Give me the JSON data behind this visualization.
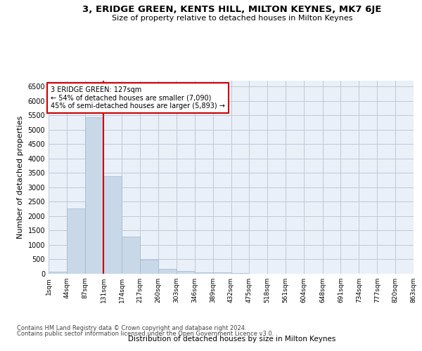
{
  "title": "3, ERIDGE GREEN, KENTS HILL, MILTON KEYNES, MK7 6JE",
  "subtitle": "Size of property relative to detached houses in Milton Keynes",
  "xlabel": "Distribution of detached houses by size in Milton Keynes",
  "ylabel": "Number of detached properties",
  "bar_color": "#c8d8e8",
  "bar_edge_color": "#a0b8cc",
  "grid_color": "#c0c8d8",
  "background_color": "#eaf0f8",
  "vline_color": "#cc0000",
  "annotation_text": "3 ERIDGE GREEN: 127sqm\n← 54% of detached houses are smaller (7,090)\n45% of semi-detached houses are larger (5,893) →",
  "annotation_box_color": "#ffffff",
  "annotation_box_edge": "#cc0000",
  "footer_line1": "Contains HM Land Registry data © Crown copyright and database right 2024.",
  "footer_line2": "Contains public sector information licensed under the Open Government Licence v3.0.",
  "bins": [
    1,
    44,
    87,
    131,
    174,
    217,
    260,
    303,
    346,
    389,
    432,
    475,
    518,
    561,
    604,
    648,
    691,
    734,
    777,
    820,
    863
  ],
  "bin_labels": [
    "1sqm",
    "44sqm",
    "87sqm",
    "131sqm",
    "174sqm",
    "217sqm",
    "260sqm",
    "303sqm",
    "346sqm",
    "389sqm",
    "432sqm",
    "475sqm",
    "518sqm",
    "561sqm",
    "604sqm",
    "648sqm",
    "691sqm",
    "734sqm",
    "777sqm",
    "820sqm",
    "863sqm"
  ],
  "bar_heights": [
    70,
    2270,
    5430,
    3380,
    1290,
    480,
    160,
    90,
    60,
    40,
    20,
    10,
    5,
    5,
    3,
    2,
    1,
    1,
    1,
    1
  ],
  "ylim": [
    0,
    6700
  ],
  "yticks": [
    0,
    500,
    1000,
    1500,
    2000,
    2500,
    3000,
    3500,
    4000,
    4500,
    5000,
    5500,
    6000,
    6500
  ],
  "vline_pos": 131
}
